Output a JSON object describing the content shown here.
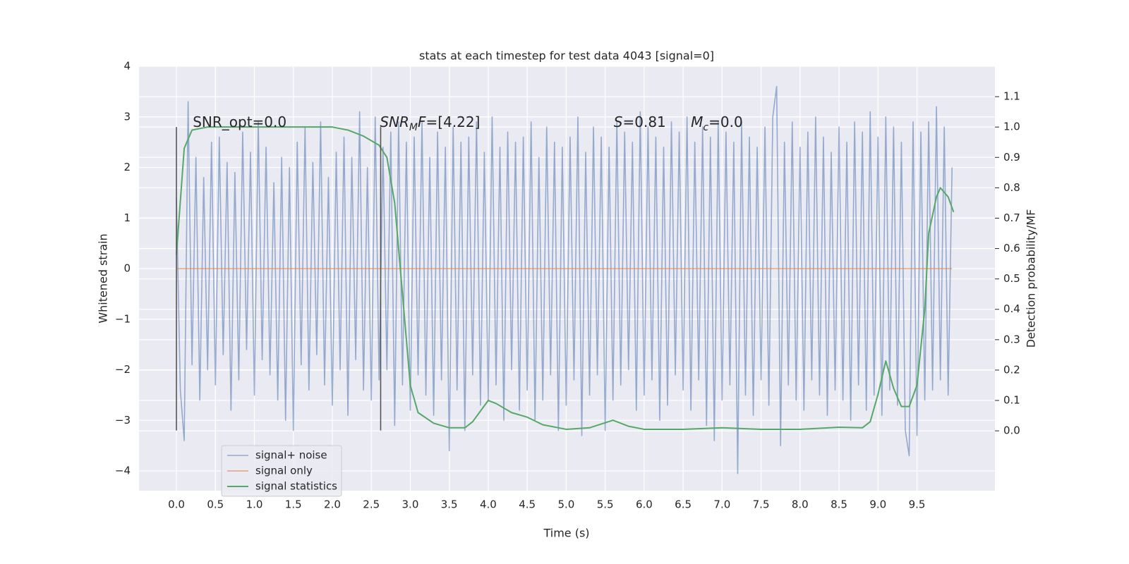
{
  "chart_data": {
    "type": "line",
    "title": "stats at each timestep for test data 4043 [signal=0]",
    "xlabel": "Time (s)",
    "ylabel": "Whitened strain",
    "y2label": "Detection probability/MF",
    "xlim": [
      -0.48,
      10.5
    ],
    "ylim": [
      -4.39,
      4.0
    ],
    "y2lim": [
      -0.197,
      1.2
    ],
    "xticks": [
      {
        "value": 0,
        "label": "0.0"
      },
      0.5,
      {
        "value": 1,
        "label": "1.0"
      },
      1.5,
      {
        "value": 2,
        "label": "2.0"
      },
      2.5,
      {
        "value": 3,
        "label": "3.0"
      },
      3.5,
      {
        "value": 4,
        "label": "4.0"
      },
      4.5,
      {
        "value": 5,
        "label": "5.0"
      },
      5.5,
      {
        "value": 6,
        "label": "6.0"
      },
      6.5,
      {
        "value": 7,
        "label": "7.0"
      },
      7.5,
      {
        "value": 8,
        "label": "8.0"
      },
      8.5,
      {
        "value": 9,
        "label": "9.0"
      },
      9.5
    ],
    "yticks": [
      {
        "value": -4,
        "label": "−4"
      },
      {
        "value": -3,
        "label": "−3"
      },
      {
        "value": -2,
        "label": "−2"
      },
      {
        "value": -1,
        "label": "−1"
      },
      0,
      1,
      2,
      3,
      4
    ],
    "y2ticks": [
      {
        "value": 0,
        "label": "0.0"
      },
      0.1,
      0.2,
      0.3,
      0.4,
      0.5,
      0.6,
      0.7,
      0.8,
      0.9,
      {
        "value": 1,
        "label": "1.0"
      },
      1.1
    ],
    "grid": true,
    "legend": "lower left",
    "series": [
      {
        "name": "signal+ noise",
        "color": "#4c72b0",
        "x": [
          0,
          0.05,
          0.1,
          0.15,
          0.2,
          0.25,
          0.3,
          0.35,
          0.4,
          0.45,
          0.5,
          0.55,
          0.6,
          0.65,
          0.7,
          0.75,
          0.8,
          0.85,
          0.9,
          0.95,
          1,
          1.05,
          1.1,
          1.15,
          1.2,
          1.25,
          1.3,
          1.35,
          1.4,
          1.45,
          1.5,
          1.55,
          1.6,
          1.65,
          1.7,
          1.75,
          1.8,
          1.85,
          1.9,
          1.95,
          2,
          2.05,
          2.1,
          2.15,
          2.2,
          2.25,
          2.3,
          2.35,
          2.4,
          2.45,
          2.5,
          2.55,
          2.6,
          2.65,
          2.7,
          2.75,
          2.8,
          2.85,
          2.9,
          2.95,
          3,
          3.05,
          3.1,
          3.15,
          3.2,
          3.25,
          3.3,
          3.35,
          3.4,
          3.45,
          3.5,
          3.55,
          3.6,
          3.65,
          3.7,
          3.75,
          3.8,
          3.85,
          3.9,
          3.95,
          4,
          4.05,
          4.1,
          4.15,
          4.2,
          4.25,
          4.3,
          4.35,
          4.4,
          4.45,
          4.5,
          4.55,
          4.6,
          4.65,
          4.7,
          4.75,
          4.8,
          4.85,
          4.9,
          4.95,
          5,
          5.05,
          5.1,
          5.15,
          5.2,
          5.25,
          5.3,
          5.35,
          5.4,
          5.45,
          5.5,
          5.55,
          5.6,
          5.65,
          5.7,
          5.75,
          5.8,
          5.85,
          5.9,
          5.95,
          6,
          6.05,
          6.1,
          6.15,
          6.2,
          6.25,
          6.3,
          6.35,
          6.4,
          6.45,
          6.5,
          6.55,
          6.6,
          6.65,
          6.7,
          6.75,
          6.8,
          6.85,
          6.9,
          6.95,
          7,
          7.05,
          7.1,
          7.15,
          7.2,
          7.25,
          7.3,
          7.35,
          7.4,
          7.45,
          7.5,
          7.55,
          7.6,
          7.65,
          7.7,
          7.75,
          7.8,
          7.85,
          7.9,
          7.95,
          8,
          8.05,
          8.1,
          8.15,
          8.2,
          8.25,
          8.3,
          8.35,
          8.4,
          8.45,
          8.5,
          8.55,
          8.6,
          8.65,
          8.7,
          8.75,
          8.8,
          8.85,
          8.9,
          8.95,
          9,
          9.05,
          9.1,
          9.15,
          9.2,
          9.25,
          9.3,
          9.35,
          9.4,
          9.45,
          9.5,
          9.55,
          9.6,
          9.65,
          9.7,
          9.75,
          9.8,
          9.85,
          9.9,
          9.95
        ],
        "values": [
          1.4,
          -2.4,
          -3.4,
          3.3,
          -1.9,
          2.2,
          -2.6,
          1.8,
          -2.0,
          2.5,
          -2.3,
          2.6,
          -1.7,
          2.1,
          -2.8,
          1.9,
          -2.2,
          2.7,
          -1.6,
          2.3,
          -2.5,
          2.9,
          -1.8,
          2.4,
          -2.1,
          1.7,
          -2.6,
          2.2,
          -3.0,
          2.0,
          -3.2,
          2.5,
          -1.9,
          2.8,
          -2.4,
          2.1,
          -1.7,
          2.9,
          -2.3,
          1.8,
          -2.7,
          2.3,
          -2.0,
          2.6,
          -2.9,
          2.2,
          -1.8,
          3.1,
          -2.4,
          2.0,
          -2.6,
          3.0,
          -2.2,
          2.4,
          -2.0,
          2.7,
          -3.1,
          2.9,
          -2.3,
          2.5,
          -2.8,
          2.6,
          -2.1,
          2.9,
          -2.5,
          2.2,
          -2.9,
          2.7,
          -2.2,
          2.4,
          -3.6,
          2.8,
          -2.4,
          2.5,
          -3.2,
          2.6,
          -2.1,
          2.9,
          -2.7,
          2.3,
          -2.6,
          3.0,
          -2.3,
          2.4,
          -3.0,
          2.7,
          -2.0,
          2.5,
          -2.8,
          2.6,
          -2.4,
          2.9,
          -3.0,
          2.2,
          -2.6,
          2.8,
          -2.1,
          2.5,
          -3.2,
          2.4,
          -2.7,
          2.6,
          -2.2,
          3.0,
          -3.3,
          2.3,
          -2.5,
          2.8,
          -2.1,
          2.6,
          -3.2,
          2.4,
          -2.6,
          2.9,
          -2.3,
          2.7,
          -2.0,
          2.5,
          -2.8,
          3.1,
          -2.5,
          2.8,
          -2.2,
          2.6,
          -3.0,
          2.4,
          -2.7,
          2.9,
          -2.1,
          2.7,
          -2.4,
          3.0,
          -2.8,
          2.5,
          -2.2,
          2.8,
          -3.1,
          2.6,
          -3.4,
          2.9,
          -2.6,
          2.7,
          -2.3,
          2.5,
          -4.05,
          2.9,
          -2.5,
          2.6,
          -2.9,
          2.4,
          -2.2,
          2.8,
          -2.7,
          3.0,
          3.6,
          -3.5,
          2.5,
          -2.3,
          2.9,
          -2.6,
          2.4,
          -2.8,
          2.7,
          -2.2,
          3.0,
          -2.5,
          2.6,
          -2.9,
          2.3,
          -2.4,
          2.8,
          -2.6,
          2.5,
          -3.0,
          2.9,
          -2.3,
          2.7,
          -2.8,
          3.1,
          -2.5,
          2.6,
          -2.9,
          3.0,
          -2.4,
          2.8,
          -2.7,
          2.5,
          -3.2,
          -3.7,
          2.9,
          -3.3,
          2.7,
          -2.6,
          2.9,
          -2.4,
          3.2,
          -2.2,
          2.8,
          -2.5,
          2.0
        ]
      },
      {
        "name": "signal only",
        "color": "#dd8452",
        "x": [
          0,
          9.95
        ],
        "values": [
          0,
          0
        ]
      },
      {
        "name": "signal statistics",
        "color": "#55a868",
        "axis": "y2",
        "x": [
          0,
          0.1,
          0.2,
          0.4,
          1.0,
          2.0,
          2.2,
          2.4,
          2.6,
          2.7,
          2.8,
          2.9,
          3.0,
          3.1,
          3.3,
          3.5,
          3.7,
          3.8,
          4.0,
          4.1,
          4.3,
          4.5,
          4.7,
          5.0,
          5.3,
          5.6,
          5.8,
          6.0,
          6.5,
          7.0,
          7.5,
          8.0,
          8.5,
          8.8,
          8.9,
          9.0,
          9.1,
          9.2,
          9.3,
          9.4,
          9.5,
          9.6,
          9.65,
          9.75,
          9.8,
          9.9,
          9.97
        ],
        "values": [
          0.58,
          0.93,
          0.99,
          1.0,
          1.0,
          1.0,
          0.99,
          0.97,
          0.94,
          0.9,
          0.75,
          0.45,
          0.15,
          0.06,
          0.025,
          0.01,
          0.01,
          0.03,
          0.1,
          0.09,
          0.06,
          0.045,
          0.02,
          0.005,
          0.01,
          0.035,
          0.015,
          0.005,
          0.005,
          0.01,
          0.005,
          0.005,
          0.012,
          0.01,
          0.03,
          0.12,
          0.23,
          0.14,
          0.08,
          0.08,
          0.15,
          0.4,
          0.65,
          0.77,
          0.8,
          0.77,
          0.72
        ]
      }
    ],
    "vlines": [
      0,
      2.62
    ],
    "vline_range": [
      -3.2,
      2.8
    ],
    "vline_color": "#555555",
    "annotations": [
      {
        "x": 0.21,
        "y": 2.8,
        "parts": [
          {
            "text": "SNR_opt=0.0"
          }
        ]
      },
      {
        "x": 2.61,
        "y": 2.8,
        "parts": [
          {
            "text": "SNR",
            "style": "italic"
          },
          {
            "text": "M",
            "style": "sub"
          },
          {
            "text": "F",
            "style": "italic"
          },
          {
            "text": "=[4.22]"
          }
        ]
      },
      {
        "x": 5.61,
        "y": 2.8,
        "parts": [
          {
            "text": "S",
            "style": "italic"
          },
          {
            "text": "=0.81"
          }
        ]
      },
      {
        "x": 6.6,
        "y": 2.8,
        "parts": [
          {
            "text": "M",
            "style": "italic"
          },
          {
            "text": "c",
            "style": "sub"
          },
          {
            "text": "=0.0"
          }
        ]
      }
    ]
  }
}
